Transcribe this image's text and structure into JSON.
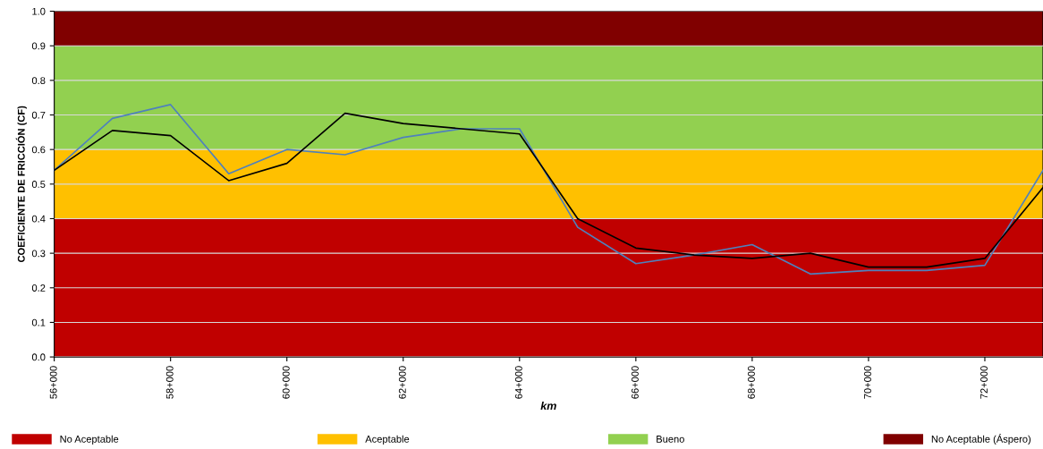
{
  "chart_data": {
    "type": "line",
    "xlabel": "km",
    "ylabel": "COEFICIENTE DE FRICCIÓN (CF)",
    "categories": [
      "56+000",
      null,
      "58+000",
      null,
      "60+000",
      null,
      "62+000",
      null,
      "64+000",
      null,
      "66+000",
      null,
      "68+000",
      null,
      "70+000",
      null,
      "72+000",
      null
    ],
    "series": [
      {
        "color": "#4f81bd",
        "values": [
          0.54,
          0.69,
          0.73,
          0.53,
          0.6,
          0.585,
          0.635,
          0.66,
          0.66,
          0.375,
          0.27,
          0.295,
          0.325,
          0.24,
          0.25,
          0.25,
          0.265,
          0.54
        ]
      },
      {
        "color": "#000000",
        "values": [
          0.54,
          0.655,
          0.64,
          0.51,
          0.56,
          0.705,
          0.675,
          0.66,
          0.645,
          0.4,
          0.315,
          0.295,
          0.285,
          0.3,
          0.26,
          0.26,
          0.285,
          0.49
        ]
      }
    ],
    "ylim": [
      0,
      1
    ],
    "yticks": [
      {
        "value": 0,
        "label": "0.0"
      },
      {
        "value": 0.1,
        "label": "0.1"
      },
      {
        "value": 0.2,
        "label": "0.2"
      },
      {
        "value": 0.3,
        "label": "0.3"
      },
      {
        "value": 0.4,
        "label": "0.4"
      },
      {
        "value": 0.5,
        "label": "0.5"
      },
      {
        "value": 0.6,
        "label": "0.6"
      },
      {
        "value": 0.7,
        "label": "0.7"
      },
      {
        "value": 0.8,
        "label": "0.8"
      },
      {
        "value": 0.9,
        "label": "0.9"
      },
      {
        "value": 1,
        "label": "1.0"
      }
    ],
    "bands": [
      {
        "axis": "y",
        "from": 0,
        "to": 0.4,
        "label": "No Aceptable",
        "color": "#c00000"
      },
      {
        "axis": "y",
        "from": 0.4,
        "to": 0.6,
        "label": "Aceptable",
        "color": "#ffc000"
      },
      {
        "axis": "y",
        "from": 0.6,
        "to": 0.9,
        "label": "Bueno",
        "color": "#92d050"
      },
      {
        "axis": "y",
        "from": 0.9,
        "to": 1,
        "label": "No Aceptable (Áspero)",
        "color": "#800000"
      }
    ],
    "grid": "y",
    "legend": "bottom",
    "marker": "none",
    "line_style": "solid"
  }
}
